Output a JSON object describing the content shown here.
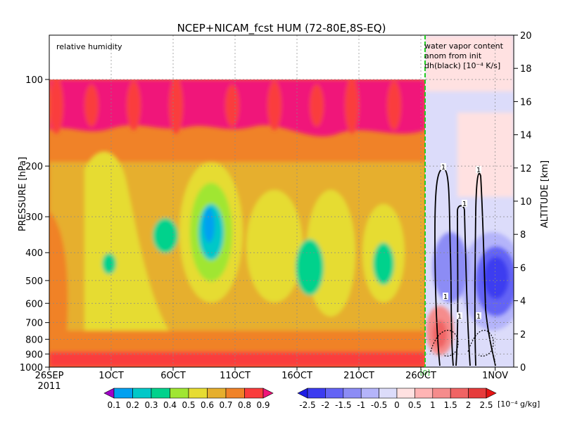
{
  "chart_data": {
    "type": "heatmap",
    "title": "NCEP+NICAM_fcst HUM (72-80E,8S-EQ)",
    "left_panel_label": "relative humidity",
    "right_panel_label": [
      "water vapor content",
      "anom from init",
      "dh(black) [10⁻⁴ K/s]"
    ],
    "ylabel": "PRESSURE [hPa]",
    "ylabel_right": "ALTITUDE [km]",
    "year_label": "2011",
    "x_ticks": [
      {
        "label": "26SEP",
        "day": 0
      },
      {
        "label": "1OCT",
        "day": 5
      },
      {
        "label": "6OCT",
        "day": 10
      },
      {
        "label": "11OCT",
        "day": 15
      },
      {
        "label": "16OCT",
        "day": 20
      },
      {
        "label": "21OCT",
        "day": 25
      },
      {
        "label": "26OCT",
        "day": 30
      },
      {
        "label": "1NOV",
        "day": 36
      }
    ],
    "pressure_ticks": [
      100,
      200,
      300,
      400,
      500,
      600,
      700,
      800,
      900,
      1000
    ],
    "altitude_ticks": [
      0,
      2,
      4,
      6,
      8,
      10,
      12,
      14,
      16,
      18,
      20
    ],
    "ylim_pressure": [
      1000,
      100
    ],
    "ylim_altitude": [
      0,
      20
    ],
    "forecast_start_label": "[0]",
    "contour_labels": [
      "1",
      "1",
      "1",
      "1",
      "1",
      "1"
    ],
    "rh_colorbar": {
      "labels": [
        "0.1",
        "0.2",
        "0.3",
        "0.4",
        "0.5",
        "0.6",
        "0.7",
        "0.8",
        "0.9"
      ],
      "colors": [
        "#a000c8",
        "#00a0f0",
        "#00c8c8",
        "#00d28c",
        "#a0e632",
        "#e6dc32",
        "#e6af2d",
        "#f08228",
        "#fa3c3c",
        "#f0147a"
      ]
    },
    "anom_colorbar": {
      "labels": [
        "-2.5",
        "-2",
        "-1.5",
        "-1",
        "-0.5",
        "0",
        "0.5",
        "1",
        "1.5",
        "2",
        "2.5"
      ],
      "unit": "[10⁻⁴ g/kg]",
      "colors": [
        "#1e1ee6",
        "#3c3cf0",
        "#6464f5",
        "#8c8cf5",
        "#b4b4fa",
        "#dcdcfa",
        "#ffe1e1",
        "#ffb4b4",
        "#f58c8c",
        "#f06464",
        "#e63c3c",
        "#e61414"
      ]
    }
  }
}
